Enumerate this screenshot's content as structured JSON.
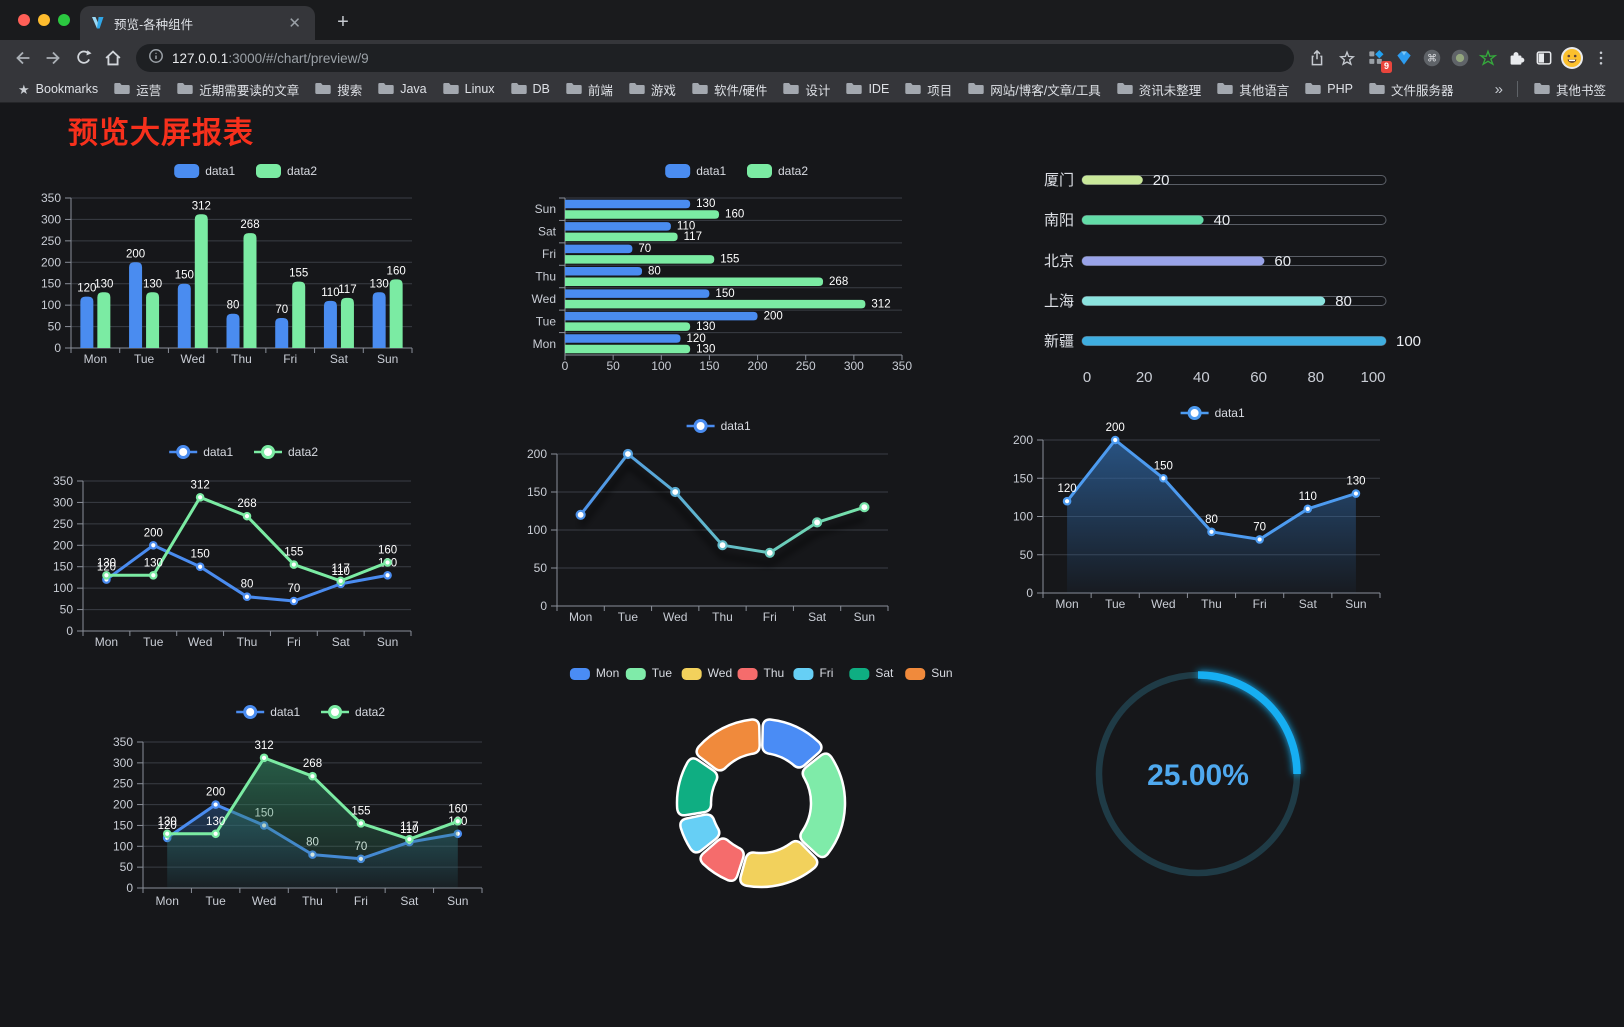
{
  "browser": {
    "tab_title": "预览-各种组件",
    "url_host": "127.0.0.1",
    "url_rest": ":3000/#/chart/preview/9",
    "bookmarks_root": "Bookmarks",
    "bookmark_folders": [
      "运营",
      "近期需要读的文章",
      "搜索",
      "Java",
      "Linux",
      "DB",
      "前端",
      "游戏",
      "软件/硬件",
      "设计",
      "IDE",
      "项目",
      "网站/博客/文章/工具",
      "资讯未整理",
      "其他语言",
      "PHP",
      "文件服务器"
    ],
    "overflow_chevron": "»",
    "other_bookmarks": "其他书签",
    "extension_badge": "9",
    "traffic_lights": [
      "#FF5F57",
      "#FEBC2E",
      "#2BC840"
    ]
  },
  "page": {
    "title": "预览大屏报表",
    "title_color": "#F7301C",
    "background": "#16171A"
  },
  "chart_data": [
    {
      "id": "grouped-bar",
      "type": "bar",
      "legend": [
        "data1",
        "data2"
      ],
      "categories": [
        "Mon",
        "Tue",
        "Wed",
        "Thu",
        "Fri",
        "Sat",
        "Sun"
      ],
      "series": [
        {
          "name": "data1",
          "color": "#4A8CF0",
          "values": [
            120,
            200,
            150,
            80,
            70,
            110,
            130
          ]
        },
        {
          "name": "data2",
          "color": "#7BEBA3",
          "values": [
            130,
            130,
            312,
            268,
            155,
            117,
            160
          ]
        }
      ],
      "ylim": [
        0,
        350
      ],
      "ystep": 50,
      "grid": true,
      "legend_position": "top"
    },
    {
      "id": "grouped-hbar",
      "type": "hbar",
      "legend": [
        "data1",
        "data2"
      ],
      "categories": [
        "Mon",
        "Tue",
        "Wed",
        "Thu",
        "Fri",
        "Sat",
        "Sun"
      ],
      "series": [
        {
          "name": "data1",
          "color": "#4A8CF0",
          "values": [
            120,
            200,
            150,
            80,
            70,
            110,
            130
          ]
        },
        {
          "name": "data2",
          "color": "#7BEBA3",
          "values": [
            130,
            130,
            312,
            268,
            155,
            117,
            160
          ]
        }
      ],
      "xlim": [
        0,
        350
      ],
      "xstep": 50,
      "legend_position": "top"
    },
    {
      "id": "city-progress",
      "type": "progress",
      "xlim": [
        0,
        100
      ],
      "xticks": [
        0,
        20,
        40,
        60,
        80,
        100
      ],
      "items": [
        {
          "label": "厦门",
          "value": 20,
          "color": "#C9E89A"
        },
        {
          "label": "南阳",
          "value": 40,
          "color": "#63DCA8"
        },
        {
          "label": "北京",
          "value": 60,
          "color": "#99A3E8"
        },
        {
          "label": "上海",
          "value": 80,
          "color": "#8BE3DE"
        },
        {
          "label": "新疆",
          "value": 100,
          "color": "#3FAEE0"
        }
      ]
    },
    {
      "id": "two-line",
      "type": "line",
      "legend": [
        "data1",
        "data2"
      ],
      "categories": [
        "Mon",
        "Tue",
        "Wed",
        "Thu",
        "Fri",
        "Sat",
        "Sun"
      ],
      "series": [
        {
          "name": "data1",
          "color": "#4A8CF0",
          "values": [
            120,
            200,
            150,
            80,
            70,
            110,
            130
          ]
        },
        {
          "name": "data2",
          "color": "#7BEBA3",
          "values": [
            130,
            130,
            312,
            268,
            155,
            117,
            160
          ]
        }
      ],
      "ylim": [
        0,
        350
      ],
      "ystep": 50,
      "point_labels": true,
      "legend_position": "top"
    },
    {
      "id": "gradient-line",
      "type": "line",
      "legend": [
        "data1"
      ],
      "categories": [
        "Mon",
        "Tue",
        "Wed",
        "Thu",
        "Fri",
        "Sat",
        "Sun"
      ],
      "series": [
        {
          "name": "data1",
          "gradient": [
            "#4A8CF0",
            "#7BEBA3"
          ],
          "shadow": true,
          "values": [
            120,
            200,
            150,
            80,
            70,
            110,
            130
          ]
        }
      ],
      "ylim": [
        0,
        200
      ],
      "ystep": 50,
      "point_labels": false,
      "legend_position": "top"
    },
    {
      "id": "area-line",
      "type": "line",
      "legend": [
        "data1"
      ],
      "categories": [
        "Mon",
        "Tue",
        "Wed",
        "Thu",
        "Fri",
        "Sat",
        "Sun"
      ],
      "series": [
        {
          "name": "data1",
          "color": "#4D9BF0",
          "area": "#2E66A4",
          "values": [
            120,
            200,
            150,
            80,
            70,
            110,
            130
          ]
        }
      ],
      "ylim": [
        0,
        200
      ],
      "ystep": 50,
      "point_labels": true,
      "legend_position": "top"
    },
    {
      "id": "two-area-line",
      "type": "line",
      "legend": [
        "data1",
        "data2"
      ],
      "categories": [
        "Mon",
        "Tue",
        "Wed",
        "Thu",
        "Fri",
        "Sat",
        "Sun"
      ],
      "series": [
        {
          "name": "data1",
          "color": "#4A8CF0",
          "area": "#2B5F9E",
          "values": [
            120,
            200,
            150,
            80,
            70,
            110,
            130
          ]
        },
        {
          "name": "data2",
          "color": "#7BEBA3",
          "area": "#2F7D5C",
          "values": [
            130,
            130,
            312,
            268,
            155,
            117,
            160
          ]
        }
      ],
      "ylim": [
        0,
        350
      ],
      "ystep": 50,
      "point_labels": true,
      "legend_position": "top"
    },
    {
      "id": "week-donut",
      "type": "donut",
      "legend": [
        "Mon",
        "Tue",
        "Wed",
        "Thu",
        "Fri",
        "Sat",
        "Sun"
      ],
      "values": [
        120,
        200,
        150,
        80,
        70,
        110,
        130
      ],
      "colors": [
        "#4A8CF5",
        "#7FEBA9",
        "#F2D15C",
        "#F56C6C",
        "#66CFF5",
        "#0FAE82",
        "#F08A3C"
      ],
      "legend_position": "top"
    },
    {
      "id": "percent-gauge",
      "type": "gauge",
      "value": 25,
      "max": 100,
      "label": "25.00%",
      "color": "#18AEF2",
      "track_color": "#1F3B46",
      "text_color": "#4FA9EF"
    }
  ]
}
